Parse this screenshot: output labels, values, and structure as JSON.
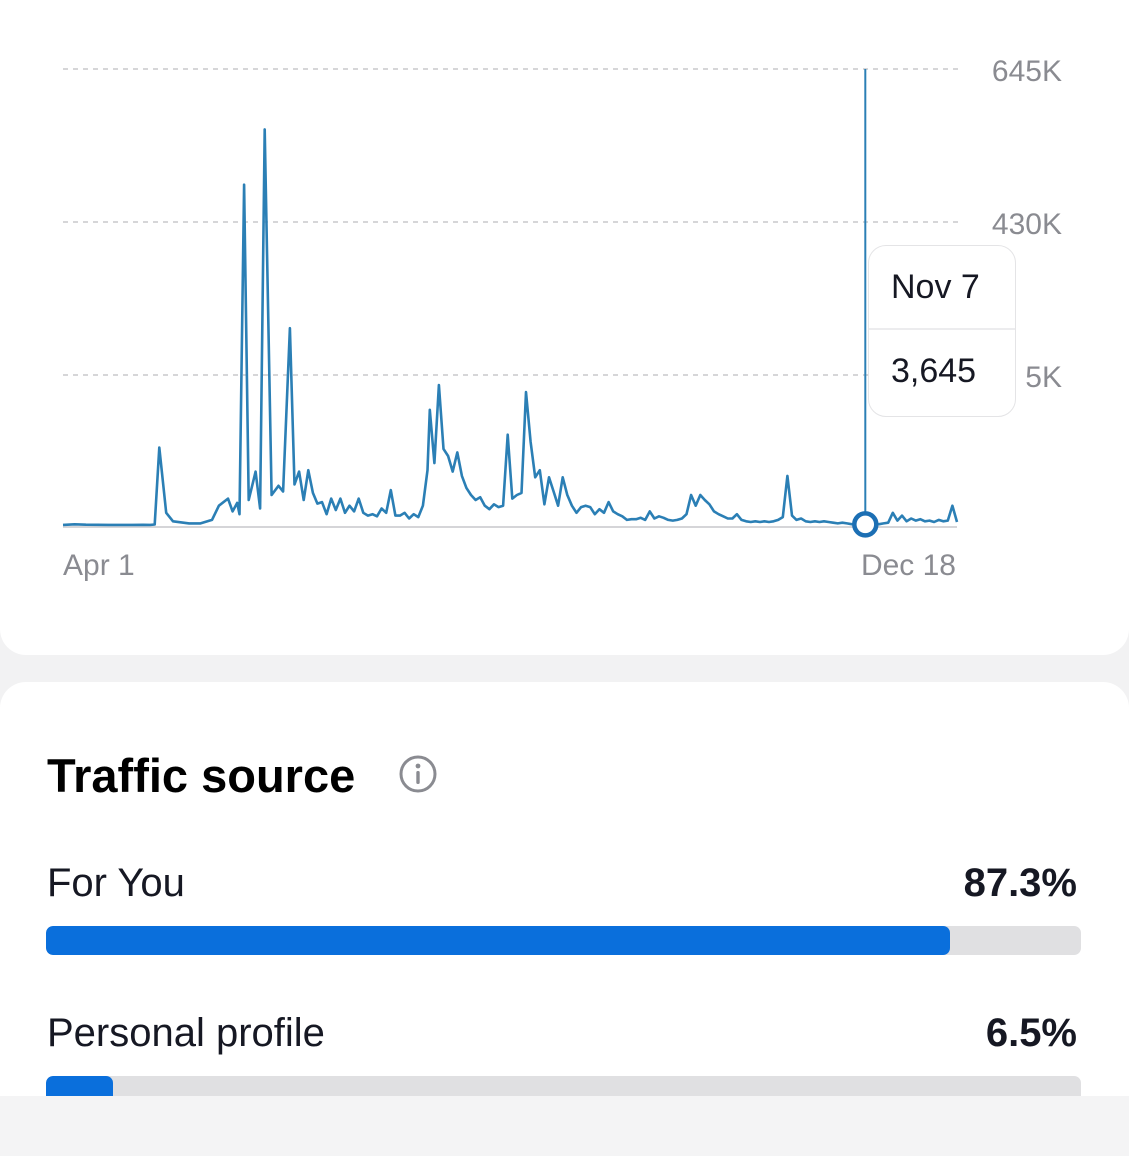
{
  "chart_data": {
    "type": "line",
    "ylabel_ticks": [
      "645K",
      "430K",
      "5K"
    ],
    "x_start_label": "Apr 1",
    "x_end_label": "Dec 18",
    "grid": true,
    "line_color": "#2b7fb5",
    "series": [
      {
        "values": [
          [
            0,
            3000
          ],
          [
            5,
            3800
          ],
          [
            10,
            3200
          ],
          [
            20,
            3000
          ],
          [
            30,
            3000
          ],
          [
            35,
            3100
          ],
          [
            38,
            3000
          ],
          [
            40,
            3500
          ],
          [
            42,
            112000
          ],
          [
            45,
            20000
          ],
          [
            48,
            8000
          ],
          [
            55,
            5000
          ],
          [
            60,
            5000
          ],
          [
            65,
            10000
          ],
          [
            68,
            30000
          ],
          [
            72,
            40000
          ],
          [
            74,
            22000
          ],
          [
            76,
            34000
          ],
          [
            77,
            18000
          ],
          [
            79,
            482000
          ],
          [
            81,
            38000
          ],
          [
            84,
            78000
          ],
          [
            86,
            26000
          ],
          [
            88,
            560000
          ],
          [
            91,
            45000
          ],
          [
            94,
            58000
          ],
          [
            96,
            50000
          ],
          [
            99,
            280000
          ],
          [
            101,
            60000
          ],
          [
            103,
            78000
          ],
          [
            105,
            38000
          ],
          [
            107,
            80000
          ],
          [
            109,
            48000
          ],
          [
            111,
            33000
          ],
          [
            113,
            35000
          ],
          [
            115,
            18000
          ],
          [
            117,
            40000
          ],
          [
            119,
            24000
          ],
          [
            121,
            40000
          ],
          [
            123,
            20000
          ],
          [
            125,
            30000
          ],
          [
            127,
            22000
          ],
          [
            129,
            40000
          ],
          [
            131,
            20000
          ],
          [
            133,
            16000
          ],
          [
            135,
            18000
          ],
          [
            137,
            15000
          ],
          [
            139,
            26000
          ],
          [
            141,
            20000
          ],
          [
            143,
            52000
          ],
          [
            145,
            16000
          ],
          [
            147,
            16000
          ],
          [
            149,
            20000
          ],
          [
            151,
            12000
          ],
          [
            153,
            18000
          ],
          [
            155,
            14000
          ],
          [
            157,
            30000
          ],
          [
            159,
            80000
          ],
          [
            160,
            165000
          ],
          [
            162,
            90000
          ],
          [
            164,
            200000
          ],
          [
            166,
            110000
          ],
          [
            168,
            100000
          ],
          [
            170,
            78000
          ],
          [
            172,
            105000
          ],
          [
            174,
            72000
          ],
          [
            176,
            55000
          ],
          [
            178,
            45000
          ],
          [
            180,
            38000
          ],
          [
            182,
            42000
          ],
          [
            184,
            30000
          ],
          [
            186,
            25000
          ],
          [
            188,
            32000
          ],
          [
            190,
            28000
          ],
          [
            192,
            30000
          ],
          [
            194,
            130000
          ],
          [
            196,
            40000
          ],
          [
            198,
            45000
          ],
          [
            200,
            48000
          ],
          [
            202,
            190000
          ],
          [
            204,
            120000
          ],
          [
            206,
            70000
          ],
          [
            208,
            80000
          ],
          [
            210,
            32000
          ],
          [
            212,
            70000
          ],
          [
            214,
            50000
          ],
          [
            216,
            30000
          ],
          [
            218,
            70000
          ],
          [
            220,
            45000
          ],
          [
            222,
            30000
          ],
          [
            224,
            20000
          ],
          [
            226,
            28000
          ],
          [
            228,
            30000
          ],
          [
            230,
            28000
          ],
          [
            232,
            18000
          ],
          [
            234,
            25000
          ],
          [
            236,
            20000
          ],
          [
            238,
            35000
          ],
          [
            240,
            22000
          ],
          [
            242,
            18000
          ],
          [
            244,
            15000
          ],
          [
            246,
            10000
          ],
          [
            248,
            11000
          ],
          [
            250,
            11000
          ],
          [
            252,
            13000
          ],
          [
            254,
            10000
          ],
          [
            256,
            22000
          ],
          [
            258,
            12000
          ],
          [
            260,
            15000
          ],
          [
            262,
            13000
          ],
          [
            264,
            10000
          ],
          [
            266,
            9000
          ],
          [
            268,
            10000
          ],
          [
            270,
            12000
          ],
          [
            272,
            18000
          ],
          [
            274,
            45000
          ],
          [
            276,
            30000
          ],
          [
            278,
            45000
          ],
          [
            280,
            38000
          ],
          [
            282,
            32000
          ],
          [
            284,
            22000
          ],
          [
            286,
            18000
          ],
          [
            288,
            15000
          ],
          [
            290,
            12000
          ],
          [
            292,
            12000
          ],
          [
            294,
            18000
          ],
          [
            296,
            10000
          ],
          [
            298,
            8000
          ],
          [
            300,
            7000
          ],
          [
            302,
            8000
          ],
          [
            304,
            7000
          ],
          [
            306,
            8000
          ],
          [
            308,
            7000
          ],
          [
            310,
            8000
          ],
          [
            312,
            10000
          ],
          [
            314,
            14000
          ],
          [
            316,
            72000
          ],
          [
            318,
            16000
          ],
          [
            320,
            10000
          ],
          [
            322,
            12000
          ],
          [
            324,
            8000
          ],
          [
            326,
            7000
          ],
          [
            328,
            8000
          ],
          [
            330,
            7000
          ],
          [
            332,
            8000
          ],
          [
            334,
            7000
          ],
          [
            336,
            6000
          ],
          [
            338,
            5000
          ],
          [
            340,
            6000
          ],
          [
            342,
            5000
          ],
          [
            344,
            4000
          ],
          [
            346,
            4000
          ],
          [
            348,
            4000
          ],
          [
            350,
            3645
          ],
          [
            352,
            4000
          ],
          [
            354,
            5000
          ],
          [
            356,
            4000
          ],
          [
            358,
            5000
          ],
          [
            360,
            6000
          ],
          [
            362,
            20000
          ],
          [
            364,
            9000
          ],
          [
            366,
            16000
          ],
          [
            368,
            8000
          ],
          [
            370,
            12000
          ],
          [
            372,
            9000
          ],
          [
            374,
            11000
          ],
          [
            376,
            8000
          ],
          [
            378,
            9000
          ],
          [
            380,
            7000
          ],
          [
            382,
            10000
          ],
          [
            384,
            8000
          ],
          [
            386,
            9000
          ],
          [
            388,
            30000
          ],
          [
            390,
            7000
          ]
        ]
      }
    ],
    "tooltip": {
      "date": "Nov 7",
      "value": "3,645"
    }
  },
  "traffic": {
    "title": "Traffic source",
    "rows": [
      {
        "label": "For You",
        "value": "87.3%",
        "percent": 87.3
      },
      {
        "label": "Personal profile",
        "value": "6.5%",
        "percent": 6.5
      }
    ]
  }
}
